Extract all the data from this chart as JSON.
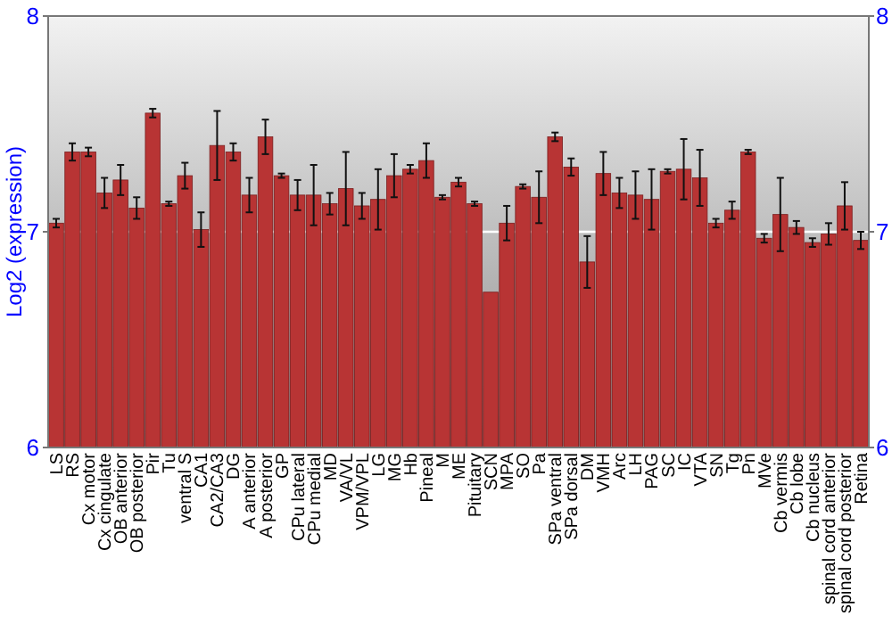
{
  "chart_data": {
    "type": "bar",
    "ylabel": "Log2 (expression)",
    "categories": [
      "LS",
      "RS",
      "Cx motor",
      "Cx cingulate",
      "OB anterior",
      "OB posterior",
      "Pir",
      "Tu",
      "ventral S",
      "CA1",
      "CA2/CA3",
      "DG",
      "A anterior",
      "A posterior",
      "GP",
      "CPu lateral",
      "CPu medial",
      "MD",
      "VA/VL",
      "VPM/VPL",
      "LG",
      "MG",
      "Hb",
      "Pineal",
      "M",
      "ME",
      "Pituitary",
      "SCN",
      "MPA",
      "SO",
      "Pa",
      "SPa ventral",
      "SPa dorsal",
      "DM",
      "VMH",
      "Arc",
      "LH",
      "PAG",
      "SC",
      "IC",
      "VTA",
      "SN",
      "Tg",
      "Pn",
      "MVe",
      "Cb vermis",
      "Cb lobe",
      "Cb nucleus",
      "spinal cord anterior",
      "spinal cord posterior",
      "Retina"
    ],
    "values": [
      7.04,
      7.37,
      7.37,
      7.18,
      7.24,
      7.11,
      7.55,
      7.13,
      7.26,
      7.01,
      7.4,
      7.37,
      7.17,
      7.44,
      7.26,
      7.17,
      7.17,
      7.13,
      7.2,
      7.12,
      7.15,
      7.26,
      7.29,
      7.33,
      7.16,
      7.23,
      7.13,
      6.72,
      7.04,
      7.21,
      7.16,
      7.44,
      7.3,
      6.86,
      7.27,
      7.18,
      7.17,
      7.15,
      7.28,
      7.29,
      7.25,
      7.04,
      7.1,
      7.37,
      6.97,
      7.08,
      7.02,
      6.95,
      6.99,
      7.12,
      6.96
    ],
    "errors": [
      0.02,
      0.04,
      0.02,
      0.07,
      0.07,
      0.05,
      0.02,
      0.01,
      0.06,
      0.08,
      0.16,
      0.04,
      0.08,
      0.08,
      0.01,
      0.07,
      0.14,
      0.05,
      0.17,
      0.06,
      0.14,
      0.1,
      0.02,
      0.08,
      0.01,
      0.02,
      0.01,
      null,
      0.08,
      0.01,
      0.12,
      0.02,
      0.04,
      0.12,
      0.1,
      0.07,
      0.11,
      0.14,
      0.01,
      0.14,
      0.13,
      0.02,
      0.04,
      0.01,
      0.02,
      0.17,
      0.03,
      0.02,
      0.05,
      0.11,
      0.04
    ],
    "color": "#b83434",
    "ylim": [
      6,
      8
    ],
    "yticks": [
      6,
      7,
      8
    ],
    "y2lim": [
      6,
      8
    ],
    "y2ticks": [
      6,
      7,
      8
    ],
    "grid": "y"
  }
}
